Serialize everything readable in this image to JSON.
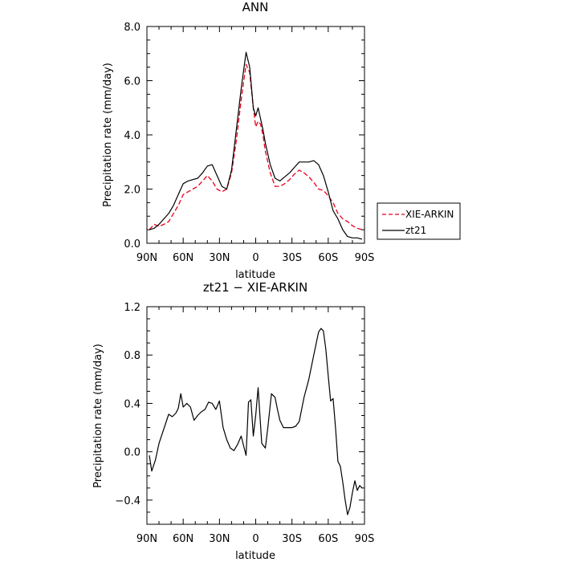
{
  "chart_data": [
    {
      "type": "line",
      "title": "ANN",
      "xlabel": "latitude",
      "ylabel": "Precipitation rate (mm/day)",
      "xlim": [
        90,
        -90
      ],
      "ylim": [
        0,
        8
      ],
      "x_ticks": [
        {
          "v": 90,
          "label": "90N"
        },
        {
          "v": 60,
          "label": "60N"
        },
        {
          "v": 30,
          "label": "30N"
        },
        {
          "v": 0,
          "label": "0"
        },
        {
          "v": -30,
          "label": "30S"
        },
        {
          "v": -60,
          "label": "60S"
        },
        {
          "v": -90,
          "label": "90S"
        }
      ],
      "y_ticks": [
        {
          "v": 0,
          "label": "0.0"
        },
        {
          "v": 2,
          "label": "2.0"
        },
        {
          "v": 4,
          "label": "4.0"
        },
        {
          "v": 6,
          "label": "6.0"
        },
        {
          "v": 8,
          "label": "8.0"
        }
      ],
      "legend_position": "right",
      "series": [
        {
          "name": "XIE-ARKIN",
          "color": "#e8001c",
          "dash": "dashed",
          "x": [
            88,
            84,
            80,
            76,
            72,
            68,
            64,
            60,
            56,
            52,
            48,
            44,
            40,
            36,
            32,
            28,
            24,
            20,
            16,
            12,
            8,
            5,
            2,
            0,
            -2,
            -4,
            -6,
            -8,
            -12,
            -16,
            -20,
            -24,
            -28,
            -32,
            -36,
            -40,
            -44,
            -48,
            -52,
            -56,
            -60,
            -64,
            -68,
            -72,
            -76,
            -80,
            -84,
            -88
          ],
          "y": [
            0.5,
            0.7,
            0.62,
            0.7,
            0.8,
            1.1,
            1.4,
            1.8,
            1.9,
            2.0,
            2.1,
            2.3,
            2.5,
            2.3,
            2.0,
            1.9,
            2.0,
            2.6,
            3.8,
            5.3,
            6.6,
            6.3,
            5.0,
            4.3,
            4.5,
            4.4,
            4.0,
            3.4,
            2.6,
            2.1,
            2.1,
            2.2,
            2.35,
            2.55,
            2.7,
            2.6,
            2.45,
            2.25,
            2.0,
            1.95,
            1.75,
            1.5,
            1.1,
            0.9,
            0.8,
            0.65,
            0.55,
            0.5
          ]
        },
        {
          "name": "zt21",
          "color": "#000000",
          "dash": "solid",
          "x": [
            88,
            84,
            80,
            76,
            72,
            68,
            64,
            60,
            56,
            52,
            48,
            44,
            40,
            36,
            32,
            28,
            24,
            20,
            16,
            12,
            8,
            5,
            2,
            0,
            -2,
            -4,
            -6,
            -8,
            -12,
            -16,
            -20,
            -24,
            -28,
            -32,
            -36,
            -40,
            -44,
            -48,
            -52,
            -56,
            -60,
            -64,
            -68,
            -72,
            -76,
            -80,
            -84,
            -88
          ],
          "y": [
            0.5,
            0.55,
            0.7,
            0.9,
            1.1,
            1.4,
            1.8,
            2.2,
            2.3,
            2.35,
            2.4,
            2.6,
            2.85,
            2.9,
            2.5,
            2.1,
            2.0,
            2.7,
            4.2,
            5.7,
            7.05,
            6.5,
            5.0,
            4.7,
            5.0,
            4.6,
            4.2,
            3.7,
            2.9,
            2.4,
            2.3,
            2.45,
            2.6,
            2.8,
            3.0,
            3.0,
            3.0,
            3.05,
            2.9,
            2.5,
            1.9,
            1.2,
            0.9,
            0.5,
            0.25,
            0.2,
            0.2,
            0.15
          ]
        }
      ]
    },
    {
      "type": "line",
      "title": "zt21 − XIE-ARKIN",
      "xlabel": "latitude",
      "ylabel": "Precipitation rate (mm/day)",
      "xlim": [
        90,
        -90
      ],
      "ylim": [
        -0.6,
        1.2
      ],
      "x_ticks": [
        {
          "v": 90,
          "label": "90N"
        },
        {
          "v": 60,
          "label": "60N"
        },
        {
          "v": 30,
          "label": "30N"
        },
        {
          "v": 0,
          "label": "0"
        },
        {
          "v": -30,
          "label": "30S"
        },
        {
          "v": -60,
          "label": "60S"
        },
        {
          "v": -90,
          "label": "90S"
        }
      ],
      "y_ticks": [
        {
          "v": -0.4,
          "label": "−0.4"
        },
        {
          "v": 0,
          "label": "0.0"
        },
        {
          "v": 0.4,
          "label": "0.4"
        },
        {
          "v": 0.8,
          "label": "0.8"
        },
        {
          "v": 1.2,
          "label": "1.2"
        }
      ],
      "series": [
        {
          "name": "",
          "color": "#000000",
          "dash": "solid",
          "x": [
            88,
            86,
            83,
            80,
            76,
            72,
            69,
            66,
            64,
            62,
            60,
            57,
            54,
            51,
            48,
            45,
            42,
            39,
            36,
            33,
            30,
            27,
            24,
            21,
            18,
            15,
            12,
            10,
            8,
            6,
            4,
            2,
            0,
            -2,
            -5,
            -8,
            -10,
            -13,
            -16,
            -18,
            -20,
            -23,
            -26,
            -30,
            -33,
            -36,
            -40,
            -44,
            -48,
            -52,
            -54,
            -56,
            -58,
            -60,
            -62,
            -64,
            -66,
            -68,
            -70,
            -72,
            -74,
            -76,
            -78,
            -80,
            -82,
            -84,
            -86,
            -88
          ],
          "y": [
            -0.03,
            -0.16,
            -0.07,
            0.07,
            0.19,
            0.31,
            0.29,
            0.32,
            0.36,
            0.48,
            0.37,
            0.4,
            0.37,
            0.26,
            0.3,
            0.33,
            0.35,
            0.41,
            0.4,
            0.35,
            0.42,
            0.2,
            0.1,
            0.03,
            0.01,
            0.06,
            0.13,
            0.05,
            -0.03,
            0.41,
            0.43,
            0.13,
            0.3,
            0.53,
            0.07,
            0.03,
            0.2,
            0.48,
            0.45,
            0.35,
            0.26,
            0.2,
            0.2,
            0.2,
            0.21,
            0.25,
            0.45,
            0.6,
            0.8,
            0.99,
            1.02,
            1.0,
            0.85,
            0.63,
            0.42,
            0.44,
            0.2,
            -0.08,
            -0.12,
            -0.25,
            -0.4,
            -0.52,
            -0.46,
            -0.34,
            -0.24,
            -0.32,
            -0.28,
            -0.3
          ]
        }
      ]
    }
  ]
}
